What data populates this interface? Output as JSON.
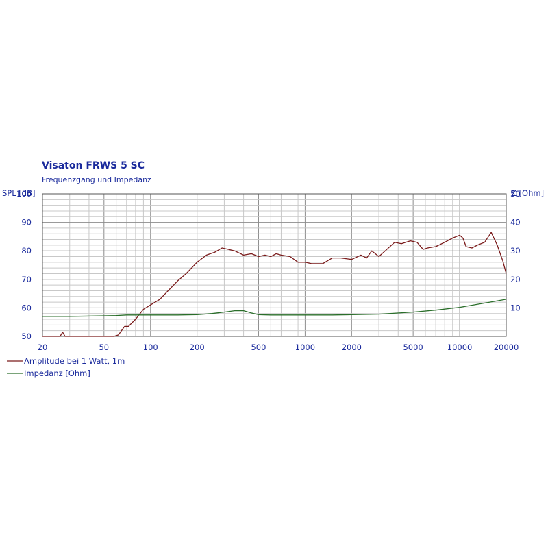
{
  "chart_data": {
    "type": "line",
    "title": "Visaton FRWS 5 SC",
    "subtitle": "Frequenzgang und Impedanz",
    "ylabel_left": "SPL [dB]",
    "ylabel_right": "Z [Ohm]",
    "x_scale": "log",
    "xlim": [
      20,
      20000
    ],
    "ylim_left": [
      50,
      100
    ],
    "ylim_right": [
      0,
      50
    ],
    "x_ticks": [
      20,
      50,
      100,
      200,
      500,
      1000,
      2000,
      5000,
      10000,
      20000
    ],
    "y_ticks_left": [
      50,
      60,
      70,
      80,
      90,
      100
    ],
    "y_ticks_right": [
      10,
      20,
      30,
      40,
      50
    ],
    "grid": true,
    "legend_position": "bottom-left",
    "series": [
      {
        "name": "Amplitude bei 1 Watt, 1m",
        "axis": "left",
        "color": "#7a1a1a",
        "x": [
          20,
          26,
          27,
          28,
          30,
          40,
          50,
          55,
          58,
          62,
          68,
          72,
          80,
          90,
          100,
          115,
          130,
          150,
          170,
          200,
          230,
          260,
          290,
          320,
          350,
          400,
          450,
          500,
          550,
          600,
          650,
          700,
          800,
          900,
          1000,
          1100,
          1300,
          1500,
          1700,
          2000,
          2300,
          2500,
          2700,
          3000,
          3300,
          3800,
          4200,
          4800,
          5300,
          5800,
          6200,
          7000,
          8000,
          9000,
          10000,
          10500,
          11000,
          12000,
          13000,
          14500,
          16000,
          17500,
          19000,
          20000
        ],
        "y": [
          50,
          50,
          51.5,
          50,
          50,
          50,
          50,
          50,
          50,
          50.5,
          53.5,
          53.5,
          56,
          59.5,
          61,
          63,
          66,
          69.5,
          72,
          76,
          78.5,
          79.5,
          81,
          80.5,
          80,
          78.5,
          79,
          78,
          78.5,
          78,
          79,
          78.5,
          78,
          76,
          76,
          75.5,
          75.5,
          77.5,
          77.5,
          77,
          78.5,
          77.5,
          80,
          78,
          80,
          83,
          82.5,
          83.5,
          83,
          80.5,
          81,
          81.5,
          83,
          84.5,
          85.5,
          84.5,
          81.5,
          81,
          82,
          83,
          86.5,
          82,
          76.5,
          72
        ]
      },
      {
        "name": "Impedanz [Ohm]",
        "axis": "right",
        "color": "#2a6e2a",
        "x": [
          20,
          30,
          50,
          60,
          70,
          100,
          150,
          200,
          250,
          300,
          350,
          400,
          450,
          500,
          600,
          800,
          1000,
          1500,
          2000,
          3000,
          5000,
          7000,
          10000,
          15000,
          20000
        ],
        "y": [
          7,
          7,
          7.2,
          7.3,
          7.5,
          7.5,
          7.5,
          7.6,
          8,
          8.5,
          9,
          9,
          8.2,
          7.6,
          7.5,
          7.5,
          7.5,
          7.5,
          7.6,
          7.8,
          8.5,
          9.2,
          10.2,
          11.8,
          13
        ]
      }
    ]
  }
}
